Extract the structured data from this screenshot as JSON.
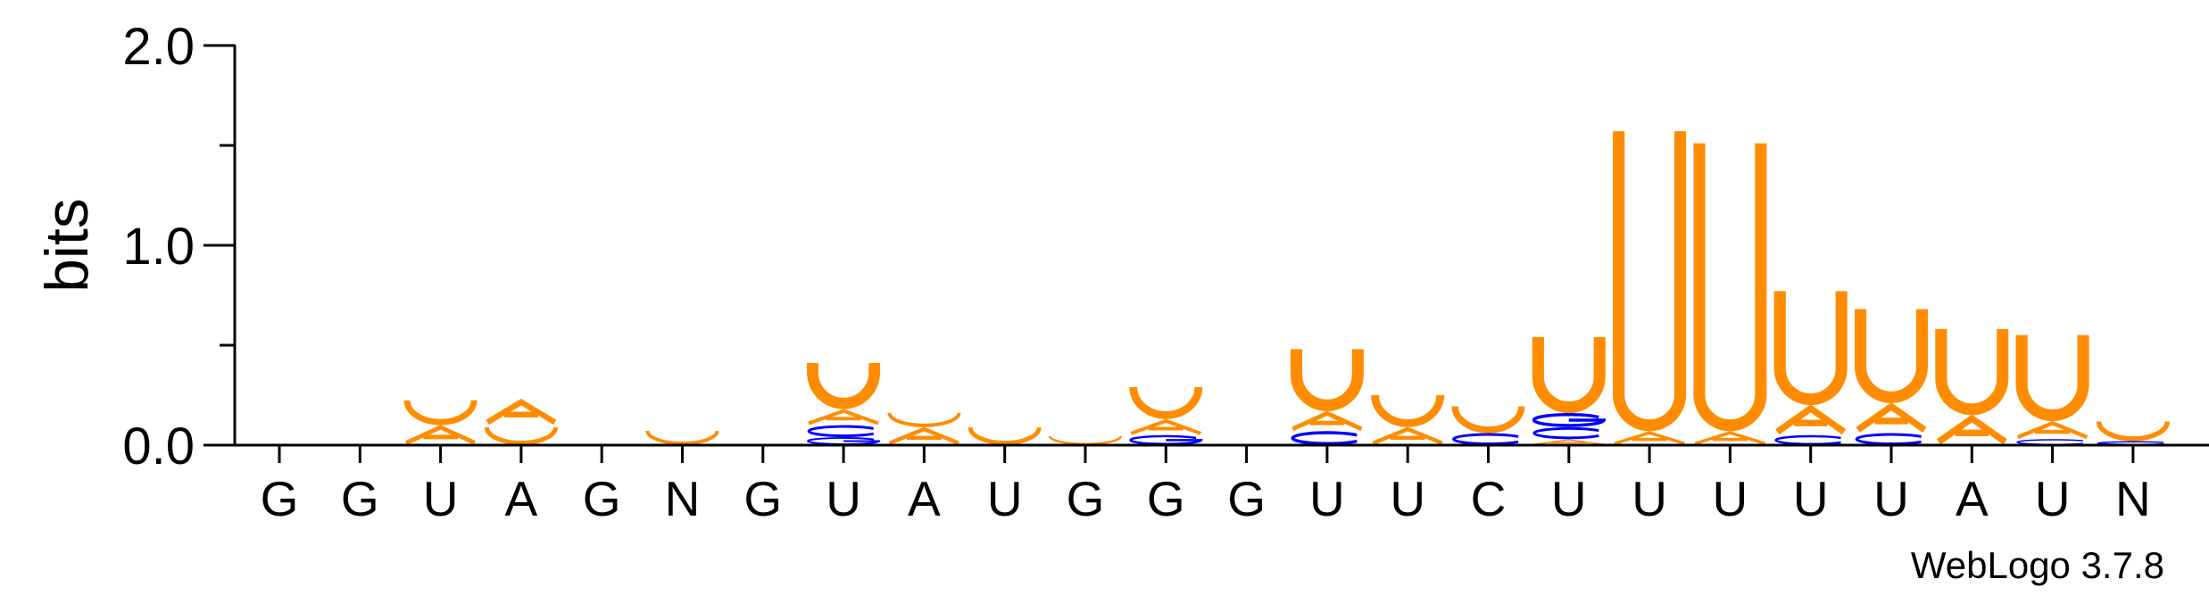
{
  "chart_data": {
    "type": "sequence-logo",
    "ylabel": "bits",
    "ylim": [
      0,
      2.0
    ],
    "yticks": [
      "0.0",
      "1.0",
      "2.0"
    ],
    "colors": {
      "U": "#ff8c00",
      "A": "#ff8c00",
      "C": "#0000ff",
      "G": "#0000ff"
    },
    "positions": [
      {
        "label": "G",
        "stack": []
      },
      {
        "label": "G",
        "stack": []
      },
      {
        "label": "U",
        "stack": [
          [
            "A",
            0.1
          ],
          [
            "U",
            0.14
          ]
        ]
      },
      {
        "label": "A",
        "stack": [
          [
            "U",
            0.1
          ],
          [
            "A",
            0.13
          ]
        ]
      },
      {
        "label": "G",
        "stack": []
      },
      {
        "label": "N",
        "stack": [
          [
            "U",
            0.08
          ]
        ]
      },
      {
        "label": "G",
        "stack": []
      },
      {
        "label": "U",
        "stack": [
          [
            "G",
            0.04
          ],
          [
            "C",
            0.06
          ],
          [
            "A",
            0.08
          ],
          [
            "U",
            0.26
          ]
        ]
      },
      {
        "label": "A",
        "stack": [
          [
            "A",
            0.09
          ],
          [
            "U",
            0.08
          ]
        ]
      },
      {
        "label": "U",
        "stack": [
          [
            "U",
            0.1
          ]
        ]
      },
      {
        "label": "G",
        "stack": [
          [
            "U",
            0.05
          ]
        ]
      },
      {
        "label": "G",
        "stack": [
          [
            "G",
            0.05
          ],
          [
            "A",
            0.08
          ],
          [
            "U",
            0.18
          ]
        ]
      },
      {
        "label": "G",
        "stack": []
      },
      {
        "label": "U",
        "stack": [
          [
            "C",
            0.07
          ],
          [
            "A",
            0.1
          ],
          [
            "U",
            0.34
          ]
        ]
      },
      {
        "label": "U",
        "stack": [
          [
            "A",
            0.09
          ],
          [
            "U",
            0.18
          ]
        ]
      },
      {
        "label": "C",
        "stack": [
          [
            "C",
            0.06
          ],
          [
            "U",
            0.15
          ]
        ]
      },
      {
        "label": "U",
        "stack": [
          [
            "A",
            0.03
          ],
          [
            "C",
            0.06
          ],
          [
            "G",
            0.07
          ],
          [
            "U",
            0.41
          ]
        ]
      },
      {
        "label": "U",
        "stack": [
          [
            "A",
            0.07
          ],
          [
            "U",
            1.53
          ]
        ]
      },
      {
        "label": "U",
        "stack": [
          [
            "A",
            0.07
          ],
          [
            "U",
            1.47
          ]
        ]
      },
      {
        "label": "U",
        "stack": [
          [
            "C",
            0.05
          ],
          [
            "A",
            0.15
          ],
          [
            "U",
            0.6
          ]
        ]
      },
      {
        "label": "U",
        "stack": [
          [
            "C",
            0.06
          ],
          [
            "A",
            0.15
          ],
          [
            "U",
            0.5
          ]
        ]
      },
      {
        "label": "A",
        "stack": [
          [
            "A",
            0.15
          ],
          [
            "U",
            0.46
          ]
        ]
      },
      {
        "label": "U",
        "stack": [
          [
            "C",
            0.03
          ],
          [
            "A",
            0.09
          ],
          [
            "U",
            0.46
          ]
        ]
      },
      {
        "label": "N",
        "stack": [
          [
            "C",
            0.02
          ],
          [
            "U",
            0.11
          ]
        ]
      }
    ]
  },
  "credit": "WebLogo 3.7.8"
}
